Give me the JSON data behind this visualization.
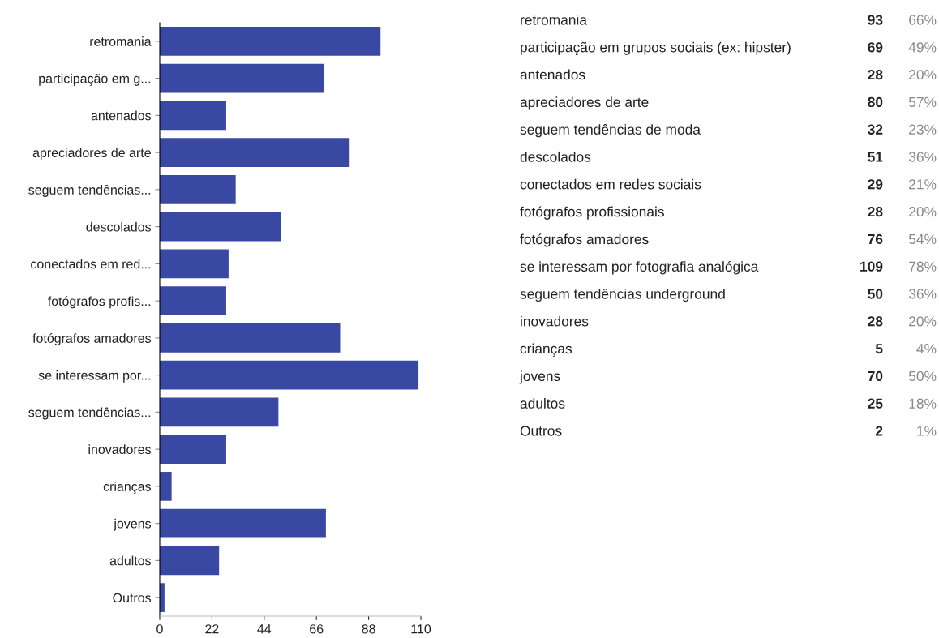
{
  "chart_data": [
    {
      "type": "bar",
      "orientation": "horizontal",
      "color": "#3949a3",
      "categories": [
        "retromania",
        "participação em g...",
        "antenados",
        "apreciadores de arte",
        "seguem tendências...",
        "descolados",
        "conectados em red...",
        "fotógrafos profis...",
        "fotógrafos amadores",
        "se interessam por...",
        "seguem tendências...",
        "inovadores",
        "crianças",
        "jovens",
        "adultos",
        "Outros"
      ],
      "values": [
        93,
        69,
        28,
        80,
        32,
        51,
        29,
        28,
        76,
        109,
        50,
        28,
        5,
        70,
        25,
        2
      ],
      "xlim": [
        0,
        110
      ],
      "xticks": [
        0,
        22,
        44,
        66,
        88,
        110
      ],
      "grid": false,
      "legend": false
    },
    {
      "type": "other",
      "data_labels": true,
      "categories": [
        "retromania",
        "participação em grupos sociais (ex: hipster)",
        "antenados",
        "apreciadores de arte",
        "seguem tendências de moda",
        "descolados",
        "conectados em redes sociais",
        "fotógrafos profissionais",
        "fotógrafos amadores",
        "se interessam por fotografia analógica",
        "seguem tendências underground",
        "inovadores",
        "crianças",
        "jovens",
        "adultos",
        "Outros"
      ],
      "series": [
        {
          "values": [
            93,
            69,
            28,
            80,
            32,
            51,
            29,
            28,
            76,
            109,
            50,
            28,
            5,
            70,
            25,
            2
          ]
        },
        {
          "values": [
            66,
            49,
            20,
            57,
            23,
            36,
            21,
            20,
            54,
            78,
            36,
            20,
            4,
            50,
            18,
            1
          ],
          "value_labels": [
            "66%",
            "49%",
            "20%",
            "57%",
            "23%",
            "36%",
            "21%",
            "20%",
            "54%",
            "78%",
            "36%",
            "20%",
            "4%",
            "50%",
            "18%",
            "1%"
          ]
        }
      ]
    }
  ]
}
